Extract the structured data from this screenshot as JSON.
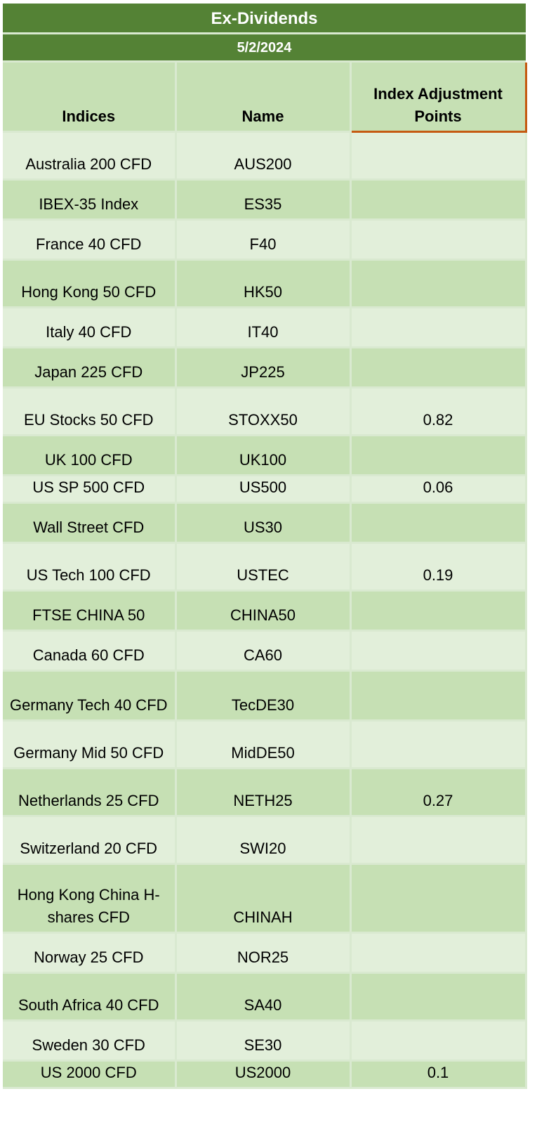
{
  "title": "Ex-Dividends",
  "date": "5/2/2024",
  "columns": {
    "indices": "Indices",
    "name": "Name",
    "adjustment": "Index Adjustment Points"
  },
  "rows": [
    {
      "index": "Australia 200 CFD",
      "name": "AUS200",
      "points": ""
    },
    {
      "index": "IBEX-35 Index",
      "name": "ES35",
      "points": ""
    },
    {
      "index": "France 40 CFD",
      "name": "F40",
      "points": ""
    },
    {
      "index": "Hong Kong 50 CFD",
      "name": "HK50",
      "points": ""
    },
    {
      "index": "Italy 40 CFD",
      "name": "IT40",
      "points": ""
    },
    {
      "index": "Japan 225 CFD",
      "name": "JP225",
      "points": ""
    },
    {
      "index": "EU Stocks 50 CFD",
      "name": "STOXX50",
      "points": "0.82"
    },
    {
      "index": "UK 100 CFD",
      "name": "UK100",
      "points": ""
    },
    {
      "index": "US SP 500 CFD",
      "name": "US500",
      "points": "0.06"
    },
    {
      "index": "Wall Street CFD",
      "name": "US30",
      "points": ""
    },
    {
      "index": "US Tech 100 CFD",
      "name": "USTEC",
      "points": "0.19"
    },
    {
      "index": "FTSE CHINA 50",
      "name": "CHINA50",
      "points": ""
    },
    {
      "index": "Canada 60 CFD",
      "name": "CA60",
      "points": ""
    },
    {
      "index": "Germany Tech 40 CFD",
      "name": "TecDE30",
      "points": ""
    },
    {
      "index": "Germany Mid 50 CFD",
      "name": "MidDE50",
      "points": ""
    },
    {
      "index": "Netherlands 25 CFD",
      "name": "NETH25",
      "points": "0.27"
    },
    {
      "index": "Switzerland 20 CFD",
      "name": "SWI20",
      "points": ""
    },
    {
      "index": "Hong Kong China H-shares CFD",
      "name": "CHINAH",
      "points": ""
    },
    {
      "index": "Norway 25 CFD",
      "name": "NOR25",
      "points": ""
    },
    {
      "index": "South Africa 40 CFD",
      "name": "SA40",
      "points": ""
    },
    {
      "index": "Sweden 30 CFD",
      "name": "SE30",
      "points": ""
    },
    {
      "index": "US 2000 CFD",
      "name": "US2000",
      "points": "0.1"
    }
  ]
}
